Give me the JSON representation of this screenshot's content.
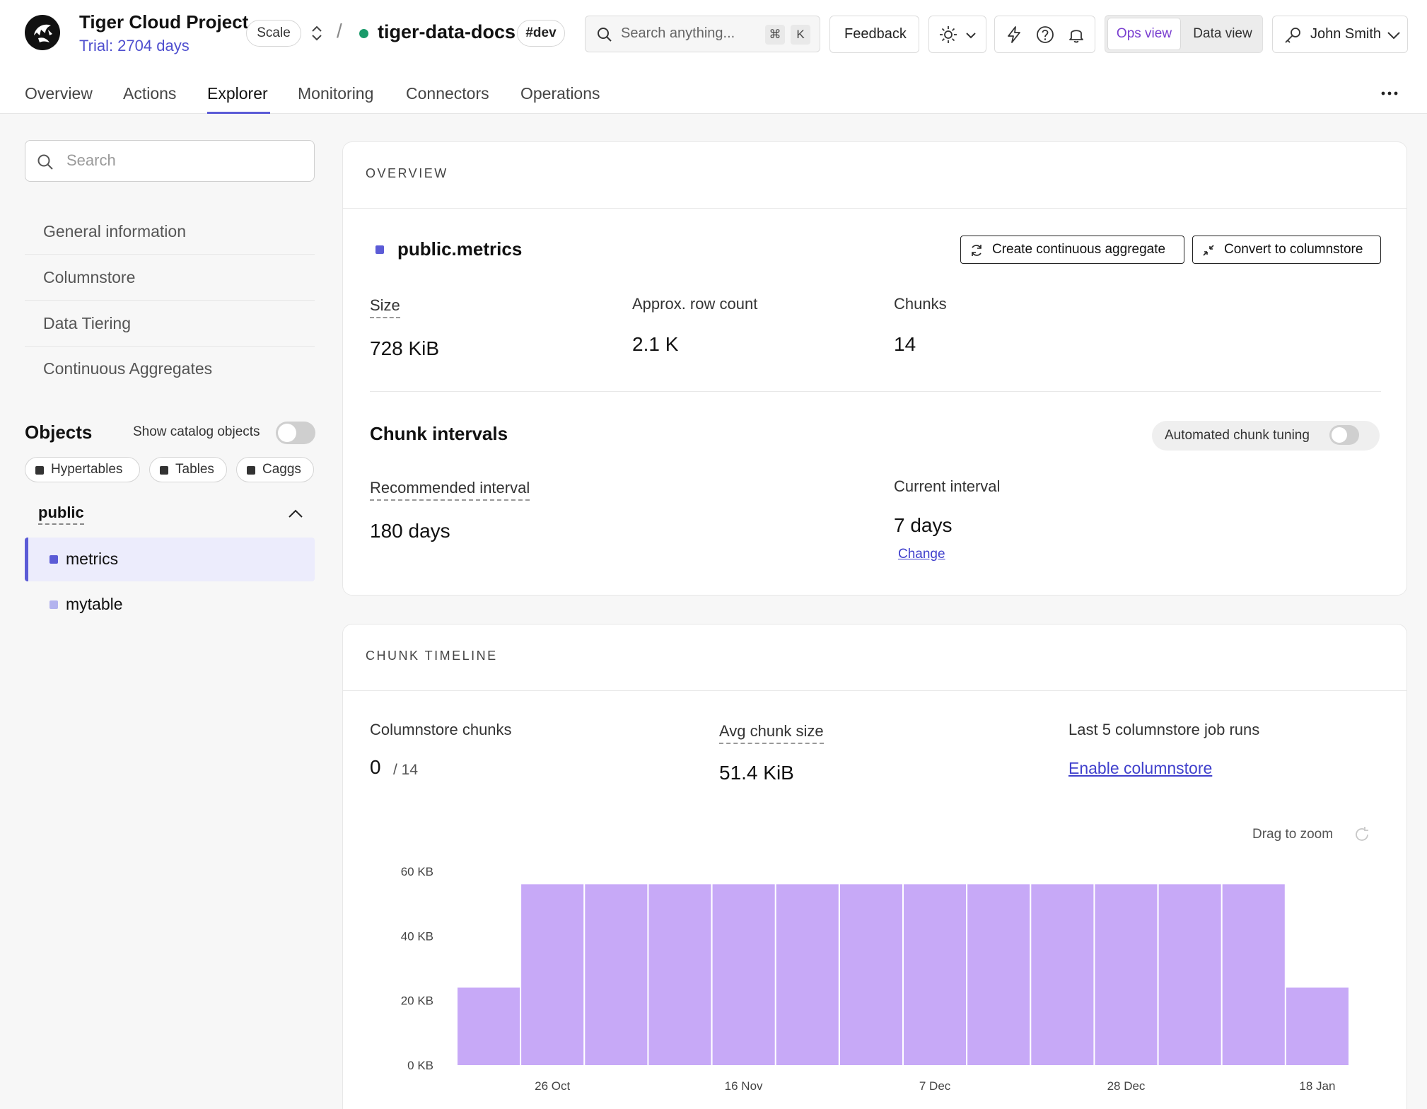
{
  "project": {
    "name": "Tiger Cloud Project",
    "trial": "Trial: 2704 days",
    "plan": "Scale"
  },
  "service": {
    "separator": "/",
    "name": "tiger-data-docs",
    "env": "#dev"
  },
  "global_search": {
    "placeholder": "Search anything...",
    "key1": "⌘",
    "key2": "K"
  },
  "header": {
    "feedback": "Feedback",
    "ops_view": "Ops view",
    "data_view": "Data view",
    "user": "John Smith"
  },
  "tabs": [
    {
      "label": "Overview"
    },
    {
      "label": "Actions"
    },
    {
      "label": "Explorer",
      "active": true
    },
    {
      "label": "Monitoring"
    },
    {
      "label": "Connectors"
    },
    {
      "label": "Operations"
    }
  ],
  "sidebar": {
    "search_placeholder": "Search",
    "items": [
      {
        "label": "General information"
      },
      {
        "label": "Columnstore"
      },
      {
        "label": "Data Tiering"
      },
      {
        "label": "Continuous Aggregates"
      }
    ],
    "objects_title": "Objects",
    "show_catalog": "Show catalog objects",
    "chips": [
      {
        "label": "Hypertables"
      },
      {
        "label": "Tables"
      },
      {
        "label": "Caggs"
      }
    ],
    "schema": "public",
    "objects": [
      {
        "label": "metrics",
        "selected": true,
        "color": "#5b5bd6"
      },
      {
        "label": "mytable",
        "selected": false,
        "color": "#b3b3ee"
      }
    ]
  },
  "overview": {
    "title": "OVERVIEW",
    "table_name": "public.metrics",
    "buttons": {
      "create_cagg": "Create continuous aggregate",
      "convert": "Convert to columnstore"
    },
    "stats": [
      {
        "label": "Size",
        "value": "728 KiB"
      },
      {
        "label": "Approx. row count",
        "value": "2.1 K"
      },
      {
        "label": "Chunks",
        "value": "14"
      }
    ],
    "chunk_intervals": {
      "title": "Chunk intervals",
      "automated_tuning": "Automated chunk tuning",
      "recommended_label": "Recommended interval",
      "recommended_value": "180 days",
      "current_label": "Current interval",
      "current_value": "7 days",
      "change": "Change"
    }
  },
  "timeline": {
    "title": "CHUNK TIMELINE",
    "columnstore_label": "Columnstore chunks",
    "columnstore_value": "0",
    "columnstore_total": "/ 14",
    "avg_label": "Avg chunk size",
    "avg_value": "51.4 KiB",
    "jobs_label": "Last 5 columnstore job runs",
    "enable_link": "Enable columnstore",
    "drag_to_zoom": "Drag to zoom"
  },
  "colors": {
    "accent": "#5b5bd6",
    "bar": "#c7a9f7",
    "link": "#4040cc",
    "service_status": "#1a9a6a"
  },
  "chart_data": {
    "type": "bar",
    "ylabel": "",
    "xlabel": "",
    "ylim": [
      0,
      60
    ],
    "yticks": [
      "0 KB",
      "20 KB",
      "40 KB",
      "60 KB"
    ],
    "ytick_values": [
      0,
      20,
      40,
      60
    ],
    "xtick_labels": [
      "26 Oct",
      "16 Nov",
      "7 Dec",
      "28 Dec",
      "18 Jan"
    ],
    "xtick_bar_index": [
      1,
      4,
      7,
      10,
      13
    ],
    "values": [
      24,
      56,
      56,
      56,
      56,
      56,
      56,
      56,
      56,
      56,
      56,
      56,
      56,
      24
    ],
    "grid": false
  }
}
